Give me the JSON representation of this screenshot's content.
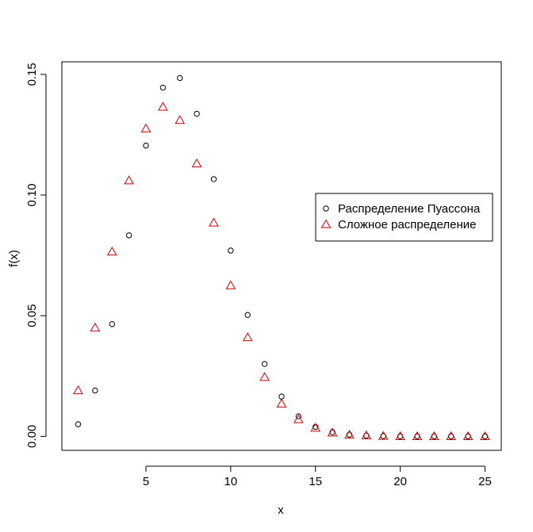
{
  "chart_data": {
    "type": "scatter",
    "title": "",
    "xlabel": "x",
    "ylabel": "f(x)",
    "xlim": [
      0.04,
      25.96
    ],
    "ylim": [
      -0.0058,
      0.1552
    ],
    "x_ticks": [
      5,
      10,
      15,
      20,
      25
    ],
    "x_tick_labels": [
      "5",
      "10",
      "15",
      "20",
      "25"
    ],
    "y_ticks": [
      0.0,
      0.05,
      0.1,
      0.15
    ],
    "y_tick_labels": [
      "0.00",
      "0.05",
      "0.10",
      "0.15"
    ],
    "grid": false,
    "legend_position": "right",
    "series": [
      {
        "name": "Распределение Пуассона",
        "marker": "circle",
        "color": "#000000",
        "x": [
          1,
          2,
          3,
          4,
          5,
          6,
          7,
          8,
          9,
          10,
          11,
          12,
          13,
          14,
          15,
          16,
          17,
          18,
          19,
          20,
          21,
          22,
          23,
          24,
          25
        ],
        "values": [
          0.005,
          0.019,
          0.0465,
          0.0833,
          0.1205,
          0.1445,
          0.1485,
          0.1337,
          0.1066,
          0.077,
          0.0503,
          0.03,
          0.0165,
          0.0083,
          0.0039,
          0.0017,
          0.0007,
          0.0003,
          0.0001,
          0.0,
          0.0,
          0.0,
          0.0,
          0.0,
          0.0
        ]
      },
      {
        "name": "Сложное распределение",
        "marker": "triangle",
        "color": "#cc0000",
        "x": [
          1,
          2,
          3,
          4,
          5,
          6,
          7,
          8,
          9,
          10,
          11,
          12,
          13,
          14,
          15,
          16,
          17,
          18,
          19,
          20,
          21,
          22,
          23,
          24,
          25
        ],
        "values": [
          0.019,
          0.045,
          0.0765,
          0.106,
          0.1275,
          0.1365,
          0.131,
          0.113,
          0.0885,
          0.0625,
          0.041,
          0.0245,
          0.0135,
          0.007,
          0.0035,
          0.0015,
          0.0006,
          0.0003,
          0.0001,
          0.0,
          0.0,
          0.0,
          0.0,
          0.0,
          0.0
        ]
      }
    ]
  }
}
